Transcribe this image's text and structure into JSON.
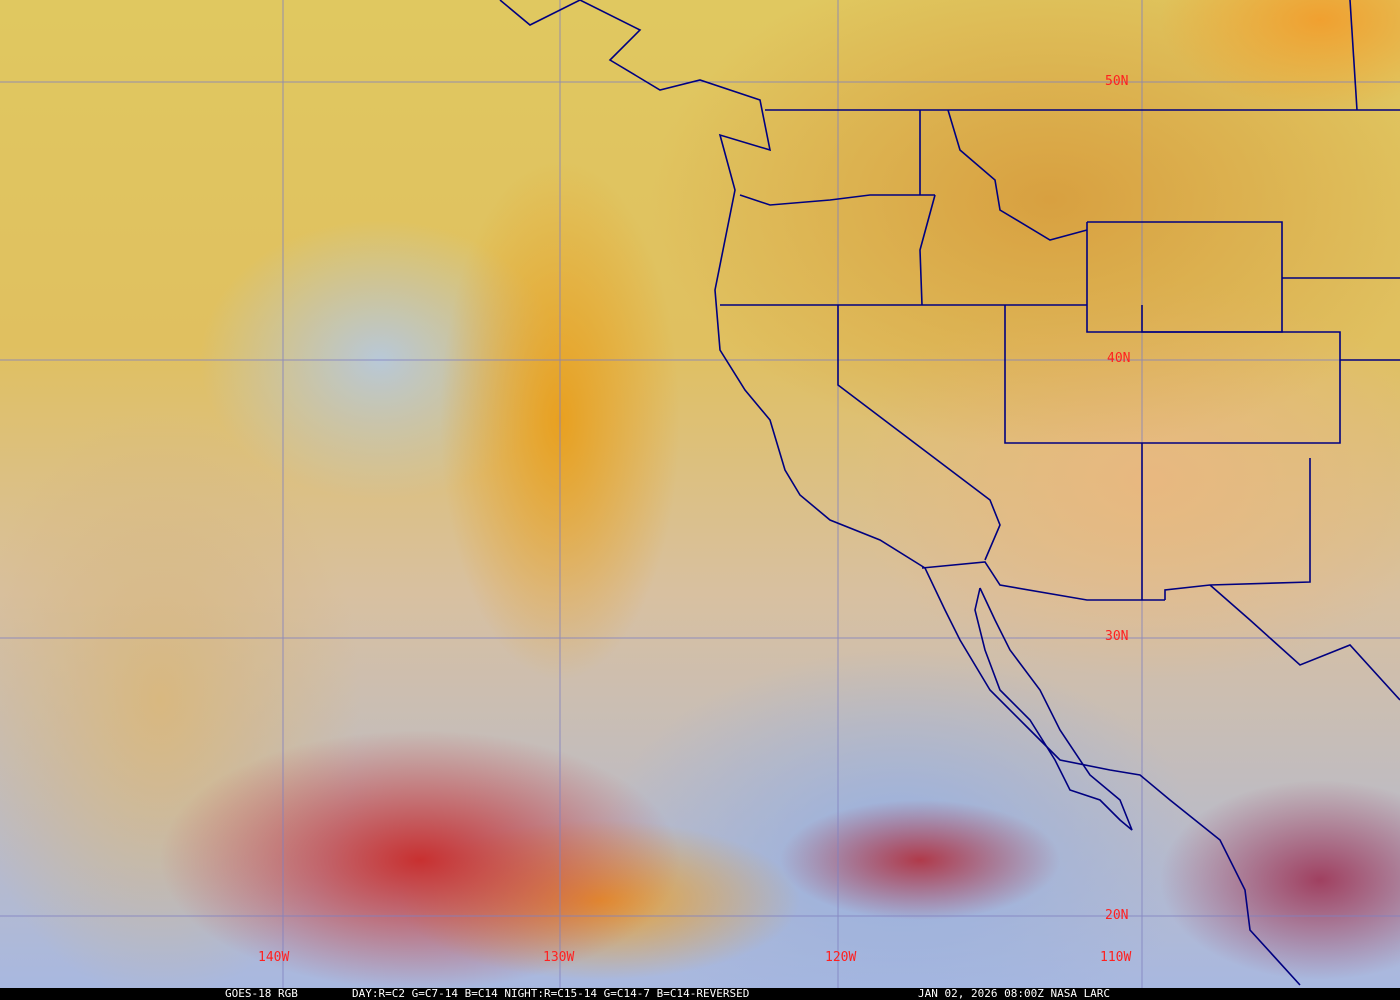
{
  "map": {
    "satellite": "GOES-18",
    "product": "RGB",
    "colors": {
      "grid": "#8080c0",
      "borders": "#000080",
      "labels": "#ff2020"
    },
    "lat_labels": [
      "50N",
      "40N",
      "30N",
      "20N"
    ],
    "lon_labels": [
      "140W",
      "130W",
      "120W",
      "110W"
    ]
  },
  "caption": {
    "product": "GOES-18 RGB",
    "recipe": "DAY:R=C2 G=C7-14 B=C14 NIGHT:R=C15-14 G=C14-7 B=C14-REVERSED",
    "timestamp": "JAN 02, 2026 08:00Z NASA LARC"
  }
}
